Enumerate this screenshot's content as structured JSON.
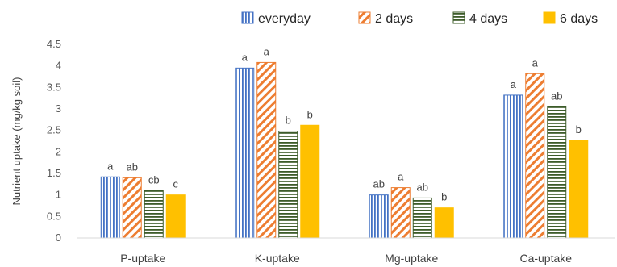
{
  "chart_data": {
    "type": "bar",
    "title": "",
    "xlabel": "",
    "ylabel": "Nutrient uptake (mg/kg soil)",
    "ylim": [
      0,
      4.5
    ],
    "yticks": [
      "0",
      "0.5",
      "1",
      "1.5",
      "2",
      "2.5",
      "3",
      "3.5",
      "4",
      "4.5"
    ],
    "categories": [
      "P-uptake",
      "K-uptake",
      "Mg-uptake",
      "Ca-uptake"
    ],
    "legend_position": "top-right",
    "grid": false,
    "series": [
      {
        "name": "everyday",
        "pattern": "vertical-stripes",
        "color": "#4472C4",
        "values": [
          1.42,
          3.95,
          1.0,
          3.32
        ],
        "labels": [
          "a",
          "a",
          "ab",
          "a"
        ]
      },
      {
        "name": "2 days",
        "pattern": "diagonal-stripes",
        "color": "#ED7D31",
        "values": [
          1.4,
          4.08,
          1.17,
          3.82
        ],
        "labels": [
          "ab",
          "a",
          "a",
          "a"
        ]
      },
      {
        "name": "4 days",
        "pattern": "horizontal-stripes",
        "color": "#548235",
        "values": [
          1.1,
          2.48,
          0.93,
          3.05
        ],
        "labels": [
          "cb",
          "b",
          "ab",
          "ab"
        ]
      },
      {
        "name": "6 days",
        "pattern": "solid",
        "color": "#FFC000",
        "values": [
          1.0,
          2.62,
          0.7,
          2.27
        ],
        "labels": [
          "c",
          "b",
          "b",
          "b"
        ]
      }
    ]
  }
}
